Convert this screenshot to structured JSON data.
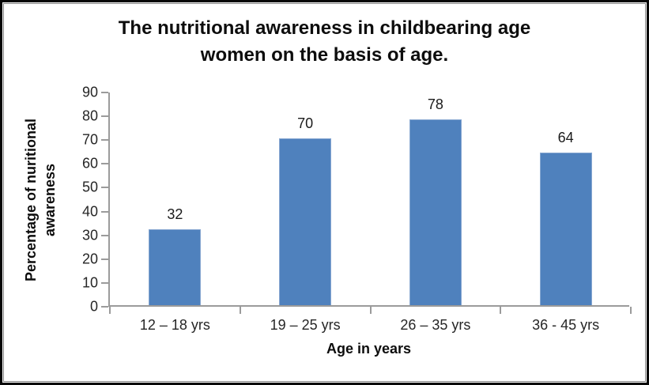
{
  "chart_data": {
    "type": "bar",
    "title": "The nutritional awareness in childbearing age women on the basis of age.",
    "title_lines": [
      "The nutritional awareness in childbearing age",
      "women on the basis of age."
    ],
    "categories": [
      "12 – 18 yrs",
      "19 – 25 yrs",
      "26 – 35 yrs",
      "36 - 45 yrs"
    ],
    "values": [
      32,
      70,
      78,
      64
    ],
    "xlabel": "Age in years",
    "ylabel": "Percentage of nuritional awareness",
    "ylabel_lines": [
      "Percentage of nuritional",
      "awareness"
    ],
    "ylim": [
      0,
      90
    ],
    "yticks": [
      0,
      10,
      20,
      30,
      40,
      50,
      60,
      70,
      80,
      90
    ],
    "grid": false,
    "legend": "none",
    "bar_color": "#4F81BD",
    "bar_border_color": "#87A7D1",
    "axis_color": "#9B9B9B",
    "text_color": "#262626",
    "title_color": "#0D0D0D"
  }
}
